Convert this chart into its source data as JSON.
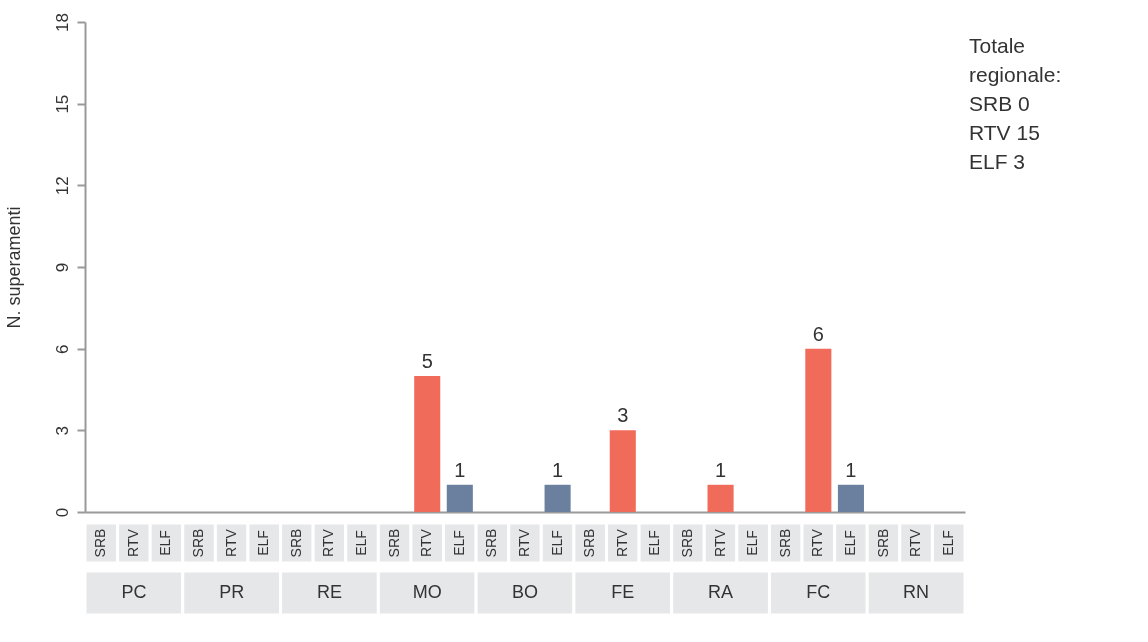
{
  "chart_data": {
    "type": "bar",
    "ylabel": "N. superamenti",
    "categories": [
      "SRB",
      "RTV",
      "ELF",
      "SRB",
      "RTV",
      "ELF",
      "SRB",
      "RTV",
      "ELF",
      "SRB",
      "RTV",
      "ELF",
      "SRB",
      "RTV",
      "ELF",
      "SRB",
      "RTV",
      "ELF",
      "SRB",
      "RTV",
      "ELF",
      "SRB",
      "RTV",
      "ELF",
      "SRB",
      "RTV",
      "ELF"
    ],
    "values": [
      0,
      0,
      0,
      0,
      0,
      0,
      0,
      0,
      0,
      0,
      5,
      1,
      0,
      0,
      1,
      0,
      3,
      0,
      0,
      1,
      0,
      0,
      6,
      1,
      0,
      0,
      0
    ],
    "value_labels": [
      null,
      null,
      null,
      null,
      null,
      null,
      null,
      null,
      null,
      null,
      "5",
      "1",
      null,
      null,
      "1",
      null,
      "3",
      null,
      null,
      "1",
      null,
      null,
      "6",
      "1",
      null,
      null,
      null
    ],
    "colors": [
      "#f06b5a",
      "#f06b5a",
      "#6b809f",
      "#f06b5a",
      "#f06b5a",
      "#6b809f",
      "#f06b5a",
      "#f06b5a",
      "#6b809f",
      "#f06b5a",
      "#f06b5a",
      "#6b809f",
      "#f06b5a",
      "#f06b5a",
      "#6b809f",
      "#f06b5a",
      "#f06b5a",
      "#6b809f",
      "#f06b5a",
      "#f06b5a",
      "#6b809f",
      "#f06b5a",
      "#f06b5a",
      "#6b809f",
      "#f06b5a",
      "#f06b5a",
      "#6b809f"
    ],
    "ylim": [
      0,
      18
    ],
    "yticks": [
      0,
      3,
      6,
      9,
      12,
      15,
      18
    ],
    "grid": false,
    "annotations": [
      "Totale\nregionale:\nSRB 0\nRTV 15\nELF 3",
      "PC",
      "PR",
      "RE",
      "MO",
      "BO",
      "FE",
      "RA",
      "FC",
      "RN"
    ]
  }
}
